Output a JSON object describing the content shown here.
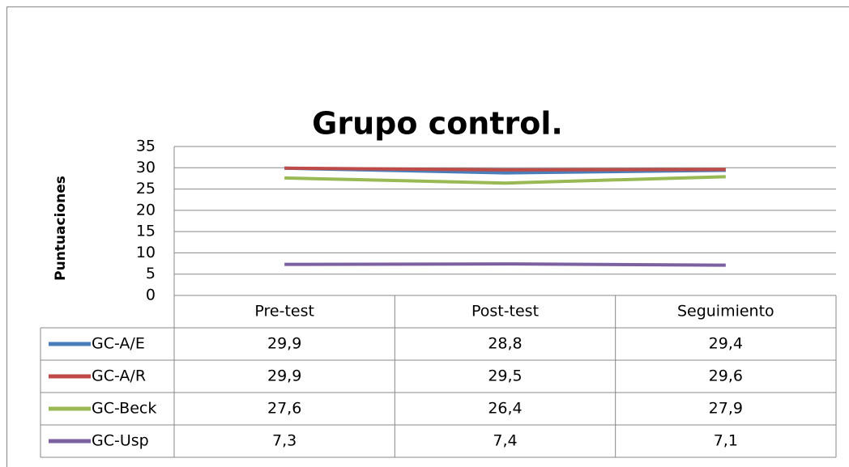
{
  "chart_data": {
    "type": "line",
    "title": "Grupo control.",
    "y_label": "Puntuaciones",
    "categories": [
      "Pre-test",
      "Post-test",
      "Seguimiento"
    ],
    "series": [
      {
        "name": "GC-A/E",
        "color": "#4a7ebb",
        "values": [
          29.9,
          28.8,
          29.4
        ],
        "value_labels": [
          "29,9",
          "28,8",
          "29,4"
        ]
      },
      {
        "name": "GC-A/R",
        "color": "#be4b48",
        "values": [
          29.9,
          29.5,
          29.6
        ],
        "value_labels": [
          "29,9",
          "29,5",
          "29,6"
        ]
      },
      {
        "name": "GC-Beck",
        "color": "#98b954",
        "values": [
          27.6,
          26.4,
          27.9
        ],
        "value_labels": [
          "27,6",
          "26,4",
          "27,9"
        ]
      },
      {
        "name": "GC-Usp",
        "color": "#7d60a0",
        "values": [
          7.3,
          7.4,
          7.1
        ],
        "value_labels": [
          "7,3",
          "7,4",
          "7,1"
        ]
      }
    ],
    "ylim": [
      0,
      35
    ],
    "yticks": [
      0,
      5,
      10,
      15,
      20,
      25,
      30,
      35
    ],
    "grid": true,
    "data_table": true
  }
}
